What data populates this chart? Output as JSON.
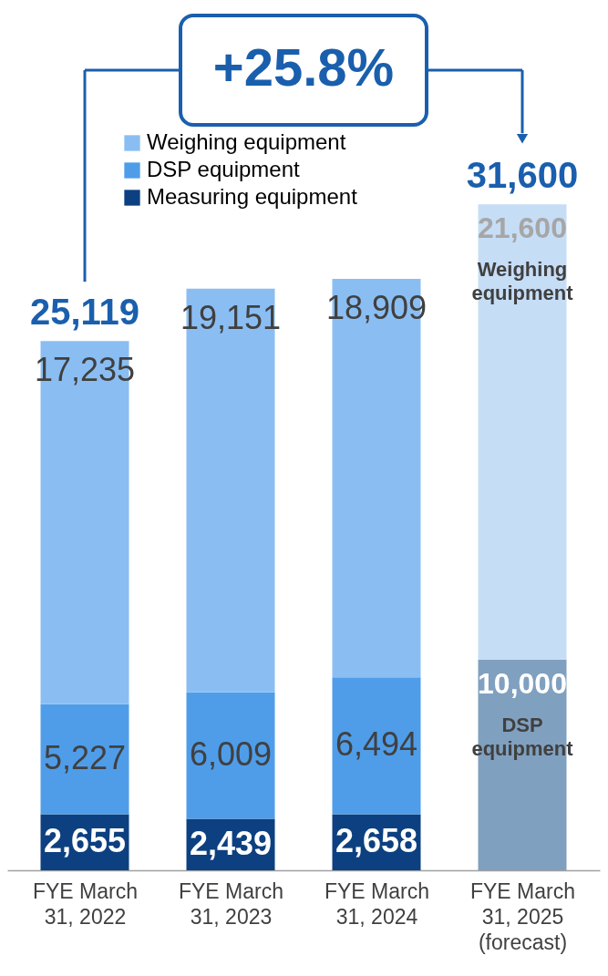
{
  "chart_data": {
    "type": "bar",
    "stacked": true,
    "grid": false,
    "legend": "top",
    "categories": [
      "FYE March\n31, 2022",
      "FYE March\n31, 2023",
      "FYE March\n31, 2024",
      "FYE March\n31, 2025\n(forecast)"
    ],
    "series": [
      {
        "name": "Measuring equipment",
        "color": "#0d4080",
        "colors": [
          "#0d4080",
          "#0d4080",
          "#0d4080",
          "#0d4080"
        ],
        "values": [
          2655,
          2439,
          2658,
          null
        ],
        "value_labels": [
          "2,655",
          "2,439",
          "2,658",
          null
        ]
      },
      {
        "name": "DSP equipment",
        "color": "#4f9de9",
        "colors": [
          "#4f9de9",
          "#4f9de9",
          "#4f9de9",
          "#80a0bf"
        ],
        "values": [
          5227,
          6009,
          6494,
          10000
        ],
        "value_labels": [
          "5,227",
          "6,009",
          "6,494",
          "10,000"
        ]
      },
      {
        "name": "Weighing equipment",
        "color": "#8abef3",
        "colors": [
          "#8abef3",
          "#8abef3",
          "#8abef3",
          "#c6ddf6"
        ],
        "values": [
          17235,
          19151,
          18909,
          21600
        ],
        "value_labels": [
          "17,235",
          "19,151",
          "18,909",
          "21,600"
        ]
      }
    ],
    "totals": [
      "25,119",
      null,
      null,
      "31,600"
    ],
    "annotations": [
      "+25.8%",
      "Weighing\nequipment",
      "DSP\nequipment"
    ]
  }
}
